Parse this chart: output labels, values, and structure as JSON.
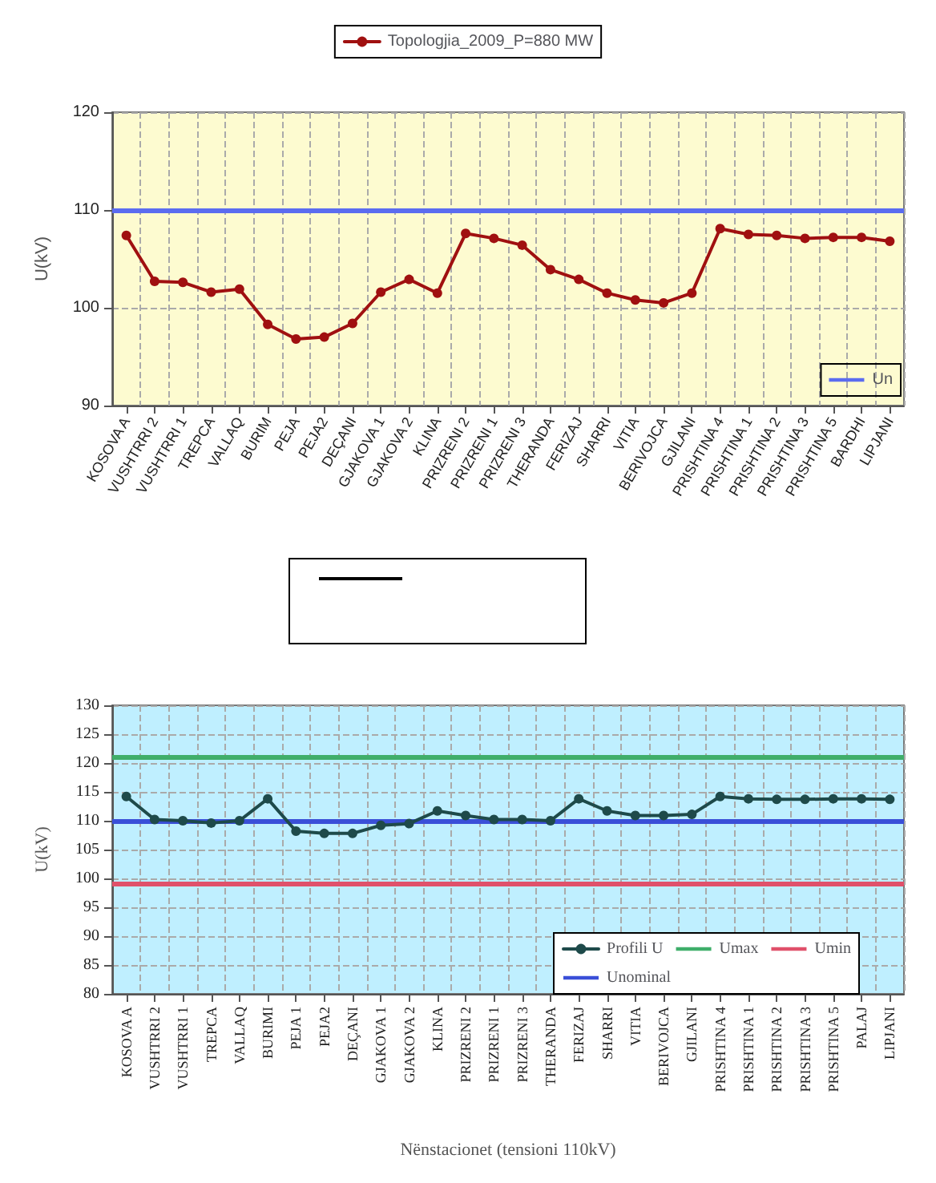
{
  "chart_data": [
    {
      "type": "line",
      "ylabel": "U(kV)",
      "categories": [
        "KOSOVA A",
        "VUSHTRRI 2",
        "VUSHTRRI 1",
        "TREPCA",
        "VALLAQ",
        "BURIM",
        "PEJA",
        "PEJA2",
        "DEÇANI",
        "GJAKOVA 1",
        "GJAKOVA 2",
        "KLINA",
        "PRIZRENI 2",
        "PRIZRENI 1",
        "PRIZRENI 3",
        "THERANDA",
        "FERIZAJ",
        "SHARRI",
        "VITIA",
        "BERIVOJCA",
        "GJILANI",
        "PRISHTINA 4",
        "PRISHTINA 1",
        "PRISHTINA 2",
        "PRISHTINA 3",
        "PRISHTINA 5",
        "BARDHI",
        "LIPJANI"
      ],
      "series": [
        {
          "name": "Topologjia_2009_P=880 MW",
          "color": "#a01010",
          "values": [
            107.4,
            102.7,
            102.6,
            101.6,
            101.9,
            98.3,
            96.8,
            97.0,
            98.4,
            101.6,
            102.9,
            101.5,
            107.6,
            107.1,
            106.4,
            103.9,
            102.9,
            101.5,
            100.8,
            100.5,
            101.5,
            108.1,
            107.5,
            107.4,
            107.1,
            107.2,
            107.2,
            106.8
          ]
        }
      ],
      "ref_lines": [
        {
          "axis": "y",
          "value": 110,
          "label": "Un",
          "color": "#5b6cf0"
        }
      ],
      "ylim": [
        90,
        120
      ],
      "yticks": [
        90,
        100,
        110,
        120
      ],
      "grid": true,
      "legend": "top",
      "marker": "circle",
      "line_style": "solid"
    },
    {
      "type": "line",
      "xlabel": "Nënstacionet (tensioni 110kV)",
      "ylabel": "U(kV)",
      "categories": [
        "KOSOVA A",
        "VUSHTRRI 2",
        "VUSHTRRI 1",
        "TREPCA",
        "VALLAQ",
        "BURIMI",
        "PEJA 1",
        "PEJA2",
        "DEÇANI",
        "GJAKOVA 1",
        "GJAKOVA 2",
        "KLINA",
        "PRIZRENI 2",
        "PRIZRENI 1",
        "PRIZRENI 3",
        "THERANDA",
        "FERIZAJ",
        "SHARRI",
        "VITIA",
        "BERIVOJCA",
        "GJILANI",
        "PRISHTINA 4",
        "PRISHTINA 1",
        "PRISHTINA 2",
        "PRISHTINA 3",
        "PRISHTINA 5",
        "PALAJ",
        "LIPJANI"
      ],
      "series": [
        {
          "name": "Profili U",
          "color": "#1e4a4a",
          "values": [
            114.2,
            110.2,
            110.0,
            109.6,
            110.0,
            113.8,
            108.2,
            107.8,
            107.8,
            109.2,
            109.5,
            111.7,
            110.9,
            110.2,
            110.2,
            110.0,
            113.8,
            111.7,
            110.9,
            110.9,
            111.1,
            114.2,
            113.8,
            113.7,
            113.7,
            113.8,
            113.8,
            113.7
          ]
        }
      ],
      "ref_lines": [
        {
          "axis": "y",
          "value": 121,
          "label": "Umax",
          "color": "#3fae6a"
        },
        {
          "axis": "y",
          "value": 99,
          "label": "Umin",
          "color": "#e0506a"
        },
        {
          "axis": "y",
          "value": 110,
          "label": "Unominal",
          "color": "#3a4fd8"
        }
      ],
      "ylim": [
        80,
        130
      ],
      "yticks": [
        80,
        85,
        90,
        95,
        100,
        105,
        110,
        115,
        120,
        125,
        130
      ],
      "grid": true,
      "legend": "bottom right",
      "marker": "circle",
      "line_style": "solid"
    }
  ]
}
